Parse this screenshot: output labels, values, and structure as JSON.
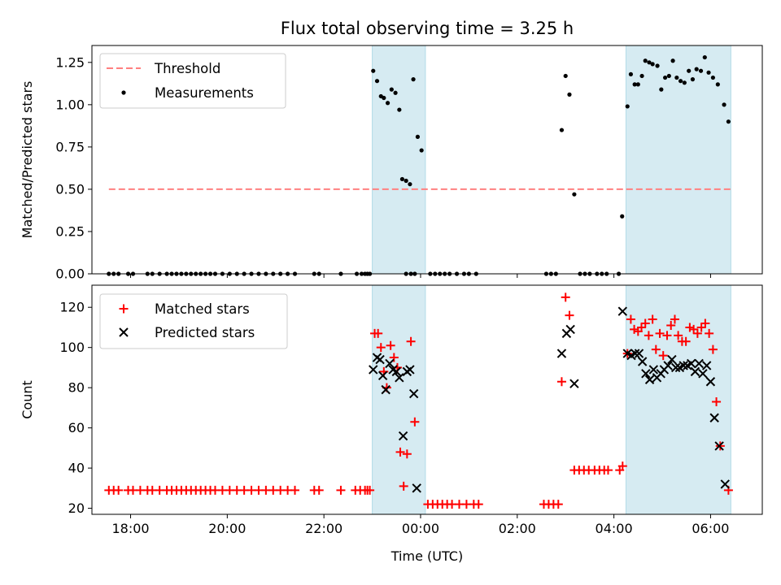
{
  "title": "Flux total observing time = 3.25 h",
  "chart_data": [
    {
      "type": "scatter",
      "panel": "top",
      "ylabel": "Matched/Predicted stars",
      "xlabel": "",
      "xlim": [
        -6.8,
        7.07
      ],
      "ylim": [
        0,
        1.35
      ],
      "yticks": [
        0.0,
        0.25,
        0.5,
        0.75,
        1.0,
        1.25
      ],
      "ytick_labels": [
        "0.00",
        "0.25",
        "0.50",
        "0.75",
        "1.00",
        "1.25"
      ],
      "legend_position": "top-left",
      "threshold": {
        "label": "Threshold",
        "value": 0.5,
        "x_range": [
          -6.45,
          6.42
        ],
        "color": "#ff8080"
      },
      "shaded_intervals": [
        [
          -1.0,
          0.1
        ],
        [
          4.25,
          6.42
        ]
      ],
      "series": [
        {
          "name": "Measurements",
          "color": "#000000",
          "points": [
            [
              -6.45,
              0
            ],
            [
              -6.35,
              0
            ],
            [
              -6.25,
              0
            ],
            [
              -6.05,
              0
            ],
            [
              -5.95,
              0
            ],
            [
              -5.65,
              0
            ],
            [
              -5.55,
              0
            ],
            [
              -5.4,
              0
            ],
            [
              -5.25,
              0
            ],
            [
              -5.15,
              0
            ],
            [
              -5.05,
              0
            ],
            [
              -4.95,
              0
            ],
            [
              -4.85,
              0
            ],
            [
              -4.75,
              0
            ],
            [
              -4.65,
              0
            ],
            [
              -4.55,
              0
            ],
            [
              -4.45,
              0
            ],
            [
              -4.35,
              0
            ],
            [
              -4.25,
              0
            ],
            [
              -4.1,
              0
            ],
            [
              -3.95,
              0
            ],
            [
              -3.8,
              0
            ],
            [
              -3.65,
              0
            ],
            [
              -3.5,
              0
            ],
            [
              -3.35,
              0
            ],
            [
              -3.2,
              0
            ],
            [
              -3.05,
              0
            ],
            [
              -2.9,
              0
            ],
            [
              -2.75,
              0
            ],
            [
              -2.6,
              0
            ],
            [
              -2.2,
              0
            ],
            [
              -2.1,
              0
            ],
            [
              -1.65,
              0
            ],
            [
              -1.32,
              0
            ],
            [
              -1.22,
              0
            ],
            [
              -0.3,
              0
            ],
            [
              -0.2,
              0
            ],
            [
              -0.12,
              0
            ],
            [
              -1.15,
              0
            ],
            [
              -1.1,
              0
            ],
            [
              -1.05,
              0
            ],
            [
              -0.98,
              1.2
            ],
            [
              -0.9,
              1.14
            ],
            [
              -0.82,
              1.05
            ],
            [
              -0.76,
              1.04
            ],
            [
              -0.68,
              1.01
            ],
            [
              -0.6,
              1.09
            ],
            [
              -0.52,
              1.07
            ],
            [
              -0.44,
              0.97
            ],
            [
              -0.38,
              0.56
            ],
            [
              -0.3,
              0.55
            ],
            [
              -0.22,
              0.53
            ],
            [
              -0.15,
              1.15
            ],
            [
              -0.06,
              0.81
            ],
            [
              0.02,
              0.73
            ],
            [
              0.2,
              0
            ],
            [
              0.3,
              0
            ],
            [
              0.4,
              0
            ],
            [
              0.5,
              0
            ],
            [
              0.6,
              0
            ],
            [
              0.75,
              0
            ],
            [
              0.9,
              0
            ],
            [
              1.0,
              0
            ],
            [
              1.15,
              0
            ],
            [
              2.6,
              0
            ],
            [
              2.7,
              0
            ],
            [
              2.8,
              0
            ],
            [
              2.92,
              0.85
            ],
            [
              3.0,
              1.17
            ],
            [
              3.08,
              1.06
            ],
            [
              3.18,
              0.47
            ],
            [
              3.3,
              0
            ],
            [
              3.4,
              0
            ],
            [
              3.5,
              0
            ],
            [
              3.65,
              0
            ],
            [
              3.75,
              0
            ],
            [
              3.85,
              0
            ],
            [
              4.1,
              0
            ],
            [
              4.17,
              0.34
            ],
            [
              4.28,
              0.99
            ],
            [
              4.35,
              1.18
            ],
            [
              4.43,
              1.12
            ],
            [
              4.5,
              1.12
            ],
            [
              4.58,
              1.17
            ],
            [
              4.65,
              1.26
            ],
            [
              4.73,
              1.25
            ],
            [
              4.8,
              1.24
            ],
            [
              4.9,
              1.23
            ],
            [
              4.98,
              1.09
            ],
            [
              5.06,
              1.16
            ],
            [
              5.14,
              1.17
            ],
            [
              5.22,
              1.26
            ],
            [
              5.3,
              1.16
            ],
            [
              5.38,
              1.14
            ],
            [
              5.46,
              1.13
            ],
            [
              5.55,
              1.2
            ],
            [
              5.63,
              1.15
            ],
            [
              5.71,
              1.21
            ],
            [
              5.8,
              1.2
            ],
            [
              5.88,
              1.28
            ],
            [
              5.96,
              1.19
            ],
            [
              6.05,
              1.16
            ],
            [
              6.15,
              1.12
            ],
            [
              6.28,
              1.0
            ],
            [
              6.37,
              0.9
            ]
          ]
        }
      ]
    },
    {
      "type": "scatter",
      "panel": "bottom",
      "ylabel": "Count",
      "xlabel": "Time (UTC)",
      "xlim": [
        -6.8,
        7.07
      ],
      "ylim": [
        17,
        131
      ],
      "yticks": [
        20,
        40,
        60,
        80,
        100,
        120
      ],
      "ytick_labels": [
        "20",
        "40",
        "60",
        "80",
        "100",
        "120"
      ],
      "xticks": [
        -6,
        -4,
        -2,
        0,
        2,
        4,
        6
      ],
      "xtick_labels": [
        "18:00",
        "20:00",
        "22:00",
        "00:00",
        "02:00",
        "04:00",
        "06:00"
      ],
      "legend_position": "top-left",
      "shaded_intervals": [
        [
          -1.0,
          0.1
        ],
        [
          4.25,
          6.42
        ]
      ],
      "series": [
        {
          "name": "Matched stars",
          "marker": "+",
          "color": "#ff0000",
          "points": [
            [
              -6.45,
              29
            ],
            [
              -6.35,
              29
            ],
            [
              -6.25,
              29
            ],
            [
              -6.05,
              29
            ],
            [
              -5.95,
              29
            ],
            [
              -5.8,
              29
            ],
            [
              -5.65,
              29
            ],
            [
              -5.55,
              29
            ],
            [
              -5.4,
              29
            ],
            [
              -5.25,
              29
            ],
            [
              -5.15,
              29
            ],
            [
              -5.05,
              29
            ],
            [
              -4.95,
              29
            ],
            [
              -4.85,
              29
            ],
            [
              -4.75,
              29
            ],
            [
              -4.65,
              29
            ],
            [
              -4.55,
              29
            ],
            [
              -4.45,
              29
            ],
            [
              -4.35,
              29
            ],
            [
              -4.25,
              29
            ],
            [
              -4.1,
              29
            ],
            [
              -3.95,
              29
            ],
            [
              -3.8,
              29
            ],
            [
              -3.65,
              29
            ],
            [
              -3.5,
              29
            ],
            [
              -3.35,
              29
            ],
            [
              -3.2,
              29
            ],
            [
              -3.05,
              29
            ],
            [
              -2.9,
              29
            ],
            [
              -2.75,
              29
            ],
            [
              -2.6,
              29
            ],
            [
              -2.2,
              29
            ],
            [
              -2.1,
              29
            ],
            [
              -1.65,
              29
            ],
            [
              -1.35,
              29
            ],
            [
              -1.25,
              29
            ],
            [
              -1.15,
              29
            ],
            [
              -1.1,
              29
            ],
            [
              -1.05,
              29
            ],
            [
              -0.95,
              107
            ],
            [
              -0.88,
              107
            ],
            [
              -0.82,
              100
            ],
            [
              -0.76,
              88
            ],
            [
              -0.7,
              80
            ],
            [
              -0.62,
              101
            ],
            [
              -0.55,
              95
            ],
            [
              -0.48,
              90
            ],
            [
              -0.42,
              48
            ],
            [
              -0.35,
              31
            ],
            [
              -0.28,
              47
            ],
            [
              -0.2,
              103
            ],
            [
              -0.12,
              63
            ],
            [
              0.15,
              22
            ],
            [
              0.25,
              22
            ],
            [
              0.35,
              22
            ],
            [
              0.45,
              22
            ],
            [
              0.55,
              22
            ],
            [
              0.65,
              22
            ],
            [
              0.8,
              22
            ],
            [
              0.95,
              22
            ],
            [
              1.1,
              22
            ],
            [
              1.2,
              22
            ],
            [
              2.55,
              22
            ],
            [
              2.65,
              22
            ],
            [
              2.75,
              22
            ],
            [
              2.85,
              22
            ],
            [
              2.92,
              83
            ],
            [
              3.0,
              125
            ],
            [
              3.08,
              116
            ],
            [
              3.18,
              39
            ],
            [
              3.28,
              39
            ],
            [
              3.38,
              39
            ],
            [
              3.48,
              39
            ],
            [
              3.6,
              39
            ],
            [
              3.7,
              39
            ],
            [
              3.8,
              39
            ],
            [
              3.88,
              39
            ],
            [
              4.12,
              39
            ],
            [
              4.18,
              41
            ],
            [
              4.28,
              97
            ],
            [
              4.35,
              114
            ],
            [
              4.42,
              109
            ],
            [
              4.5,
              108
            ],
            [
              4.57,
              110
            ],
            [
              4.65,
              112
            ],
            [
              4.72,
              106
            ],
            [
              4.8,
              114
            ],
            [
              4.87,
              99
            ],
            [
              4.95,
              107
            ],
            [
              5.02,
              96
            ],
            [
              5.1,
              106
            ],
            [
              5.18,
              111
            ],
            [
              5.26,
              114
            ],
            [
              5.33,
              106
            ],
            [
              5.41,
              103
            ],
            [
              5.49,
              103
            ],
            [
              5.57,
              110
            ],
            [
              5.65,
              109
            ],
            [
              5.73,
              107
            ],
            [
              5.81,
              110
            ],
            [
              5.89,
              112
            ],
            [
              5.97,
              107
            ],
            [
              6.05,
              99
            ],
            [
              6.12,
              73
            ],
            [
              6.2,
              51
            ],
            [
              6.37,
              29
            ]
          ]
        },
        {
          "name": "Predicted stars",
          "marker": "x",
          "color": "#000000",
          "points": [
            [
              -0.98,
              89
            ],
            [
              -0.9,
              95
            ],
            [
              -0.84,
              94
            ],
            [
              -0.78,
              86
            ],
            [
              -0.72,
              79
            ],
            [
              -0.64,
              92
            ],
            [
              -0.57,
              89
            ],
            [
              -0.5,
              88
            ],
            [
              -0.44,
              85
            ],
            [
              -0.36,
              56
            ],
            [
              -0.28,
              88
            ],
            [
              -0.22,
              89
            ],
            [
              -0.14,
              77
            ],
            [
              -0.08,
              30
            ],
            [
              2.92,
              97
            ],
            [
              3.02,
              107
            ],
            [
              3.1,
              109
            ],
            [
              3.18,
              82
            ],
            [
              4.18,
              118
            ],
            [
              4.28,
              97
            ],
            [
              4.36,
              96
            ],
            [
              4.44,
              97
            ],
            [
              4.52,
              97
            ],
            [
              4.59,
              93
            ],
            [
              4.66,
              87
            ],
            [
              4.74,
              84
            ],
            [
              4.82,
              89
            ],
            [
              4.89,
              85
            ],
            [
              4.97,
              87
            ],
            [
              5.04,
              89
            ],
            [
              5.12,
              91
            ],
            [
              5.2,
              94
            ],
            [
              5.28,
              90
            ],
            [
              5.36,
              90
            ],
            [
              5.44,
              91
            ],
            [
              5.52,
              91
            ],
            [
              5.6,
              92
            ],
            [
              5.68,
              88
            ],
            [
              5.76,
              92
            ],
            [
              5.84,
              87
            ],
            [
              5.92,
              91
            ],
            [
              6.0,
              83
            ],
            [
              6.08,
              65
            ],
            [
              6.18,
              51
            ],
            [
              6.3,
              32
            ]
          ]
        }
      ]
    }
  ]
}
